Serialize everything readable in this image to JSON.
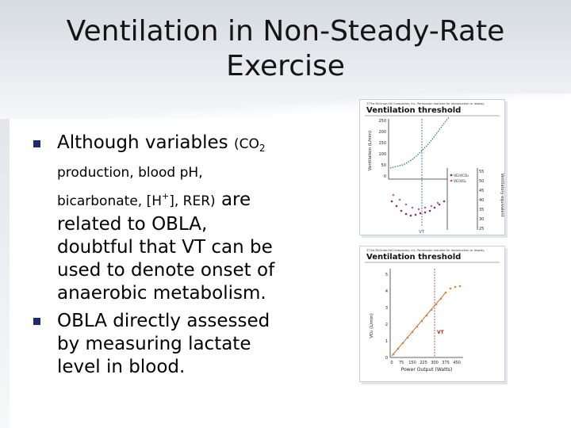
{
  "slide": {
    "title_line1": "Ventilation in Non-Steady-Rate",
    "title_line2": "Exercise",
    "bullets": [
      {
        "t1": "Although variables ",
        "t2": "(CO",
        "t3": "2",
        "t4": "production, blood p",
        "t5": "H, bicarbonate, [H",
        "t6": "+",
        "t7": "], RER)",
        "t8": " are related to OBLA, doubtful that VT can be used to denote onset of anaerobic metabolism."
      },
      {
        "text": "OBLA directly assessed by measuring lactate level in blood."
      }
    ]
  },
  "figures": [
    {
      "credit": "©The McGraw-Hill Companies, Inc. Permission required for reproduction or display.",
      "title": "Ventilation threshold",
      "y_label": "Ventilation (L/min)",
      "y_ticks": [
        "250",
        "200",
        "150",
        "100",
        "50",
        "0"
      ],
      "y2_label": "Ventilatory equivalent",
      "y2_ticks": [
        "55",
        "50",
        "45",
        "40",
        "35",
        "30",
        "25"
      ],
      "legend": [
        "VE/VCO₂",
        "VE/VO₂"
      ],
      "vt_label": "VT",
      "colors": {
        "line": "#1a7a4a",
        "points": "#8a2b6f",
        "vt": "#2b4fa8"
      }
    },
    {
      "credit": "©The McGraw-Hill Companies, Inc. Permission required for reproduction or display.",
      "title": "Ventilation threshold",
      "y_label": "VO₂ (L/min)",
      "y_ticks": [
        "5",
        "4",
        "3",
        "2",
        "1",
        "0"
      ],
      "x_ticks": [
        "0",
        "75",
        "150",
        "225",
        "300",
        "375",
        "450"
      ],
      "x_label": "Power Output (Watts)",
      "vt_label": "VT",
      "colors": {
        "points": "#d98a1c",
        "line": "#b9451f",
        "vt": "#b02a2a"
      }
    }
  ]
}
